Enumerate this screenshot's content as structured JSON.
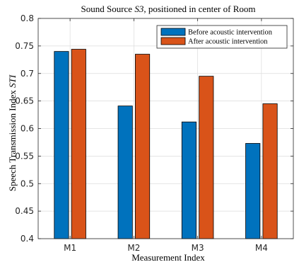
{
  "chart_data": {
    "type": "bar",
    "title": {
      "prefix": "Sound Source ",
      "emph": "S3",
      "suffix": ", positioned in center of Room"
    },
    "xlabel": "Measurement Index",
    "ylabel": {
      "prefix": "Speech Transmission Index ",
      "emph": "STI"
    },
    "categories": [
      "M1",
      "M2",
      "M3",
      "M4"
    ],
    "series": [
      {
        "name": "Before acoustic intervention",
        "color": "#0072BD",
        "values": [
          0.74,
          0.641,
          0.612,
          0.573
        ]
      },
      {
        "name": "After acoustic intervention",
        "color": "#D95319",
        "values": [
          0.744,
          0.735,
          0.695,
          0.645
        ]
      }
    ],
    "ylim": [
      0.4,
      0.8
    ],
    "yticks": [
      0.4,
      0.45,
      0.5,
      0.55,
      0.6,
      0.65,
      0.7,
      0.75,
      0.8
    ],
    "ytick_labels": [
      "0.4",
      "0.45",
      "0.5",
      "0.55",
      "0.6",
      "0.65",
      "0.7",
      "0.75",
      "0.8"
    ],
    "grid": true,
    "legend_position": "top-right"
  }
}
